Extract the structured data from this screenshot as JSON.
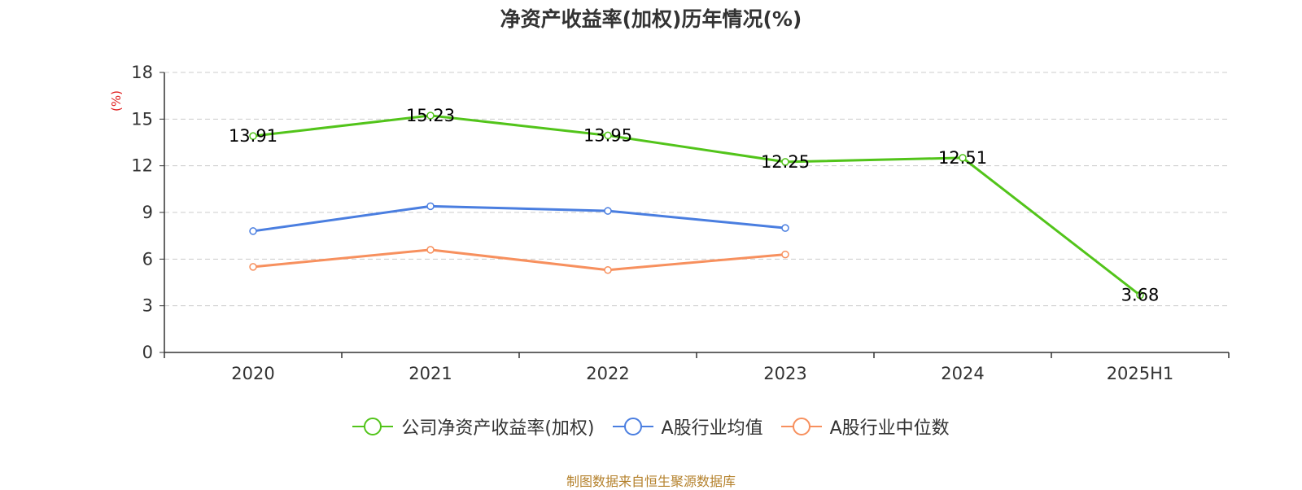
{
  "chart_data": {
    "type": "line",
    "title": "净资产收益率(加权)历年情况(%)",
    "ylabel": "(%)",
    "categories": [
      "2020",
      "2021",
      "2022",
      "2023",
      "2024",
      "2025H1"
    ],
    "ylim": [
      0,
      18
    ],
    "yticks": [
      0,
      3,
      6,
      9,
      12,
      15,
      18
    ],
    "grid": true,
    "legend_position": "bottom",
    "series": [
      {
        "name": "公司净资产收益率(加权)",
        "color": "#52c41a",
        "labels_shown": true,
        "values": [
          13.91,
          15.23,
          13.95,
          12.25,
          12.51,
          3.68
        ],
        "labels": [
          "13.91",
          "15.23",
          "13.95",
          "12.25",
          "12.51",
          "3.68"
        ]
      },
      {
        "name": "A股行业均值",
        "color": "#4a7ee0",
        "labels_shown": false,
        "values": [
          7.8,
          9.4,
          9.1,
          8.0,
          null,
          null
        ]
      },
      {
        "name": "A股行业中位数",
        "color": "#f7905e",
        "labels_shown": false,
        "values": [
          5.5,
          6.6,
          5.3,
          6.3,
          null,
          null
        ]
      }
    ]
  },
  "source": "制图数据来自恒生聚源数据库",
  "colors": {
    "title": "#333333",
    "axis": "#333333",
    "grid": "#cccccc",
    "source": "#b5822d",
    "ylabel": "#e02020"
  }
}
